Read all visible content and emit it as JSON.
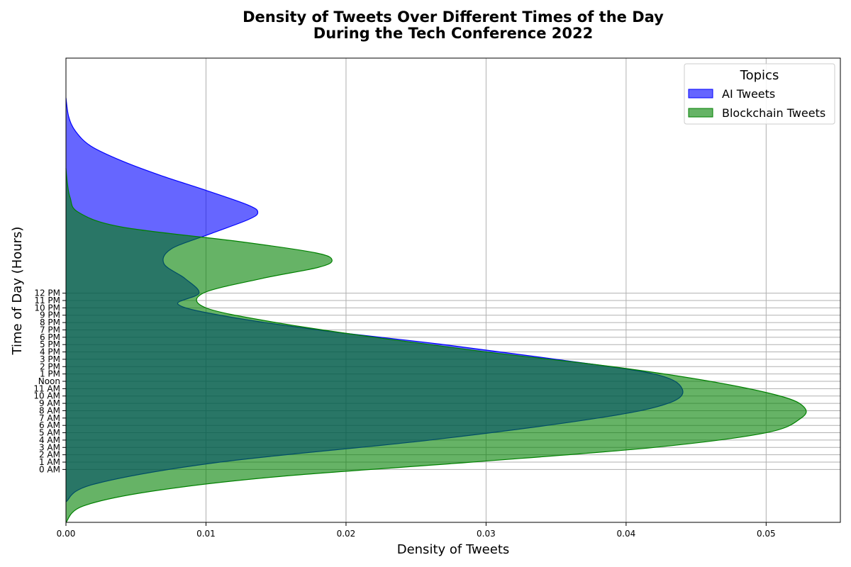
{
  "chart_data": {
    "type": "area",
    "orientation": "horizontal",
    "title_lines": [
      "Density of Tweets Over Different Times of the Day",
      "During the Tech Conference 2022"
    ],
    "xlabel": "Density of Tweets",
    "ylabel": "Time of Day (Hours)",
    "xlim": [
      0,
      0.0553
    ],
    "ylim": [
      -7.2,
      56
    ],
    "xticks": [
      0.0,
      0.01,
      0.02,
      0.03,
      0.04,
      0.05
    ],
    "xtick_labels": [
      "0.00",
      "0.01",
      "0.02",
      "0.03",
      "0.04",
      "0.05"
    ],
    "yticks": [
      0,
      1,
      2,
      3,
      4,
      5,
      6,
      7,
      8,
      9,
      10,
      11,
      12,
      13,
      14,
      15,
      16,
      17,
      18,
      19,
      20,
      21,
      22,
      23,
      24
    ],
    "ytick_labels": [
      "0 AM",
      "1 AM",
      "2 AM",
      "3 AM",
      "4 AM",
      "5 AM",
      "6 AM",
      "7 AM",
      "8 AM",
      "9 AM",
      "10 AM",
      "11 AM",
      "Noon",
      "1 PM",
      "2 PM",
      "3 PM",
      "4 PM",
      "5 PM",
      "6 PM",
      "7 PM",
      "8 PM",
      "9 PM",
      "10 PM",
      "11 PM",
      "12 PM"
    ],
    "grid": true,
    "legend": {
      "title": "Topics",
      "placement": "top-right"
    },
    "series": [
      {
        "name": "AI Tweets",
        "color": "#0000ff",
        "alpha": 0.6,
        "curve": [
          {
            "y": -4.4,
            "x": 0.0
          },
          {
            "y": -2,
            "x": 0.002
          },
          {
            "y": 1,
            "x": 0.011
          },
          {
            "y": 4,
            "x": 0.026
          },
          {
            "y": 7,
            "x": 0.038
          },
          {
            "y": 9,
            "x": 0.043
          },
          {
            "y": 11,
            "x": 0.044
          },
          {
            "y": 13,
            "x": 0.042
          },
          {
            "y": 15,
            "x": 0.035
          },
          {
            "y": 17,
            "x": 0.027
          },
          {
            "y": 19,
            "x": 0.018
          },
          {
            "y": 21,
            "x": 0.011
          },
          {
            "y": 22.5,
            "x": 0.008
          },
          {
            "y": 24,
            "x": 0.0095
          },
          {
            "y": 26,
            "x": 0.0085
          },
          {
            "y": 28,
            "x": 0.007
          },
          {
            "y": 30,
            "x": 0.0075
          },
          {
            "y": 32,
            "x": 0.0102
          },
          {
            "y": 34,
            "x": 0.013
          },
          {
            "y": 35,
            "x": 0.0137
          },
          {
            "y": 36,
            "x": 0.013
          },
          {
            "y": 38,
            "x": 0.01
          },
          {
            "y": 40,
            "x": 0.0068
          },
          {
            "y": 42,
            "x": 0.004
          },
          {
            "y": 44,
            "x": 0.0018
          },
          {
            "y": 46,
            "x": 0.0007
          },
          {
            "y": 48,
            "x": 0.0002
          },
          {
            "y": 50.6,
            "x": 0.0
          }
        ]
      },
      {
        "name": "Blockchain Tweets",
        "color": "#008000",
        "alpha": 0.6,
        "curve": [
          {
            "y": -7.2,
            "x": 0.0
          },
          {
            "y": -5,
            "x": 0.0012
          },
          {
            "y": -3,
            "x": 0.006
          },
          {
            "y": -1,
            "x": 0.015
          },
          {
            "y": 1,
            "x": 0.029
          },
          {
            "y": 3,
            "x": 0.042
          },
          {
            "y": 5,
            "x": 0.05
          },
          {
            "y": 7,
            "x": 0.0525
          },
          {
            "y": 8.5,
            "x": 0.0527
          },
          {
            "y": 10,
            "x": 0.051
          },
          {
            "y": 12,
            "x": 0.046
          },
          {
            "y": 14,
            "x": 0.039
          },
          {
            "y": 16,
            "x": 0.03
          },
          {
            "y": 18,
            "x": 0.022
          },
          {
            "y": 20,
            "x": 0.015
          },
          {
            "y": 22,
            "x": 0.01
          },
          {
            "y": 24,
            "x": 0.0098
          },
          {
            "y": 26,
            "x": 0.014
          },
          {
            "y": 27.5,
            "x": 0.018
          },
          {
            "y": 28.5,
            "x": 0.019
          },
          {
            "y": 29.5,
            "x": 0.0178
          },
          {
            "y": 31,
            "x": 0.0125
          },
          {
            "y": 33,
            "x": 0.004
          },
          {
            "y": 35,
            "x": 0.0009
          },
          {
            "y": 37,
            "x": 0.0003
          },
          {
            "y": 39,
            "x": 0.0001
          },
          {
            "y": 41,
            "x": 0.0
          }
        ]
      }
    ]
  }
}
